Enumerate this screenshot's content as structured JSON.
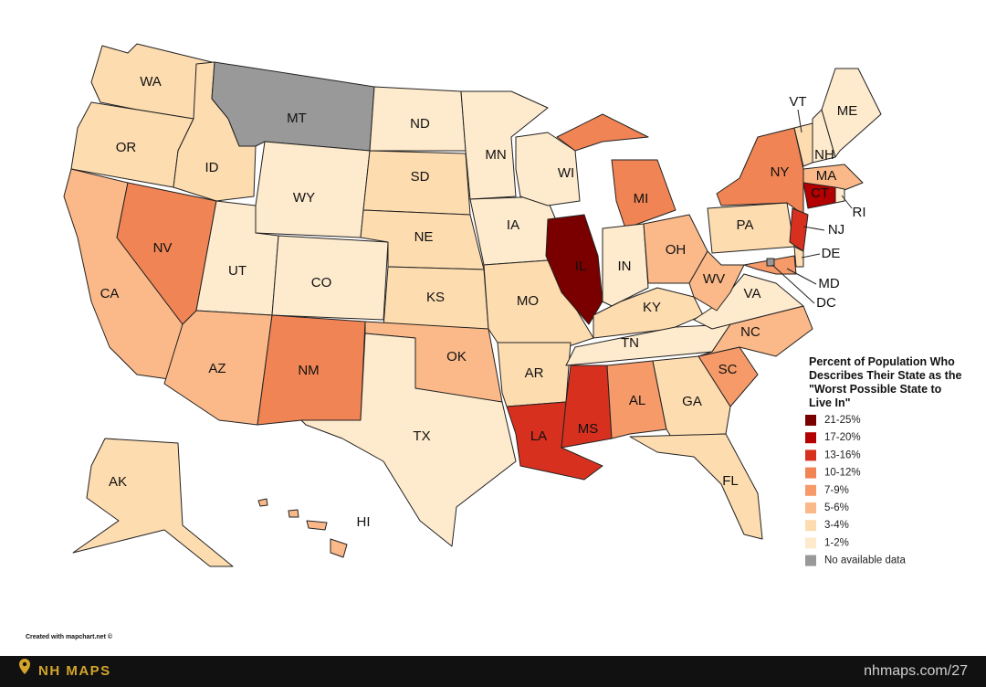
{
  "map": {
    "states": [
      {
        "label": "WA",
        "color": "#fddcb0"
      },
      {
        "label": "OR",
        "color": "#fddcb0"
      },
      {
        "label": "CA",
        "color": "#fbb989"
      },
      {
        "label": "NV",
        "color": "#f08454"
      },
      {
        "label": "ID",
        "color": "#fddcb0"
      },
      {
        "label": "MT",
        "color": "#999999"
      },
      {
        "label": "WY",
        "color": "#feeacd"
      },
      {
        "label": "UT",
        "color": "#feeacd"
      },
      {
        "label": "CO",
        "color": "#feeacd"
      },
      {
        "label": "AZ",
        "color": "#fbb989"
      },
      {
        "label": "NM",
        "color": "#f08454"
      },
      {
        "label": "ND",
        "color": "#feeacd"
      },
      {
        "label": "SD",
        "color": "#fddcb0"
      },
      {
        "label": "NE",
        "color": "#fddcb0"
      },
      {
        "label": "KS",
        "color": "#fddcb0"
      },
      {
        "label": "OK",
        "color": "#fbb989"
      },
      {
        "label": "TX",
        "color": "#feeacd"
      },
      {
        "label": "MN",
        "color": "#feeacd"
      },
      {
        "label": "IA",
        "color": "#feeacd"
      },
      {
        "label": "MO",
        "color": "#fddcb0"
      },
      {
        "label": "AR",
        "color": "#fddcb0"
      },
      {
        "label": "LA",
        "color": "#d7301f"
      },
      {
        "label": "WI",
        "color": "#feeacd"
      },
      {
        "label": "IL",
        "color": "#7a0000"
      },
      {
        "label": "MI",
        "color": "#f08454"
      },
      {
        "label": "IN",
        "color": "#feeacd"
      },
      {
        "label": "OH",
        "color": "#fbb989"
      },
      {
        "label": "KY",
        "color": "#fddcb0"
      },
      {
        "label": "TN",
        "color": "#feeacd"
      },
      {
        "label": "MS",
        "color": "#d7301f"
      },
      {
        "label": "AL",
        "color": "#f59a68"
      },
      {
        "label": "GA",
        "color": "#fddcb0"
      },
      {
        "label": "FL",
        "color": "#fddcb0"
      },
      {
        "label": "SC",
        "color": "#f59a68"
      },
      {
        "label": "NC",
        "color": "#fbb989"
      },
      {
        "label": "VA",
        "color": "#feeacd"
      },
      {
        "label": "WV",
        "color": "#fbb989"
      },
      {
        "label": "PA",
        "color": "#fddcb0"
      },
      {
        "label": "NY",
        "color": "#f08454"
      },
      {
        "label": "NJ",
        "color": "#d7301f"
      },
      {
        "label": "DE",
        "color": "#fddcb0"
      },
      {
        "label": "MD",
        "color": "#f59a68"
      },
      {
        "label": "DC",
        "color": "#999999"
      },
      {
        "label": "VT",
        "color": "#fddcb0"
      },
      {
        "label": "NH",
        "color": "#feeacd"
      },
      {
        "label": "ME",
        "color": "#feeacd"
      },
      {
        "label": "MA",
        "color": "#fbb989"
      },
      {
        "label": "CT",
        "color": "#b30000"
      },
      {
        "label": "RI",
        "color": "#feeacd"
      },
      {
        "label": "AK",
        "color": "#fddcb0"
      },
      {
        "label": "HI",
        "color": "#fbb989"
      }
    ],
    "legend": {
      "title": "Percent of Population Who Describes Their State as the \"Worst Possible State to Live In\"",
      "items": [
        {
          "label": "21-25%",
          "color": "#7a0000"
        },
        {
          "label": "17-20%",
          "color": "#b30000"
        },
        {
          "label": "13-16%",
          "color": "#d7301f"
        },
        {
          "label": "10-12%",
          "color": "#f08454"
        },
        {
          "label": "7-9%",
          "color": "#f59a68"
        },
        {
          "label": "5-6%",
          "color": "#fbb989"
        },
        {
          "label": "3-4%",
          "color": "#fddcb0"
        },
        {
          "label": "1-2%",
          "color": "#feeacd"
        },
        {
          "label": "No available data",
          "color": "#999999"
        }
      ]
    }
  },
  "credit": "Created with mapchart.net ©",
  "footer": {
    "brand": "NH MAPS",
    "url": "nhmaps.com/27"
  }
}
